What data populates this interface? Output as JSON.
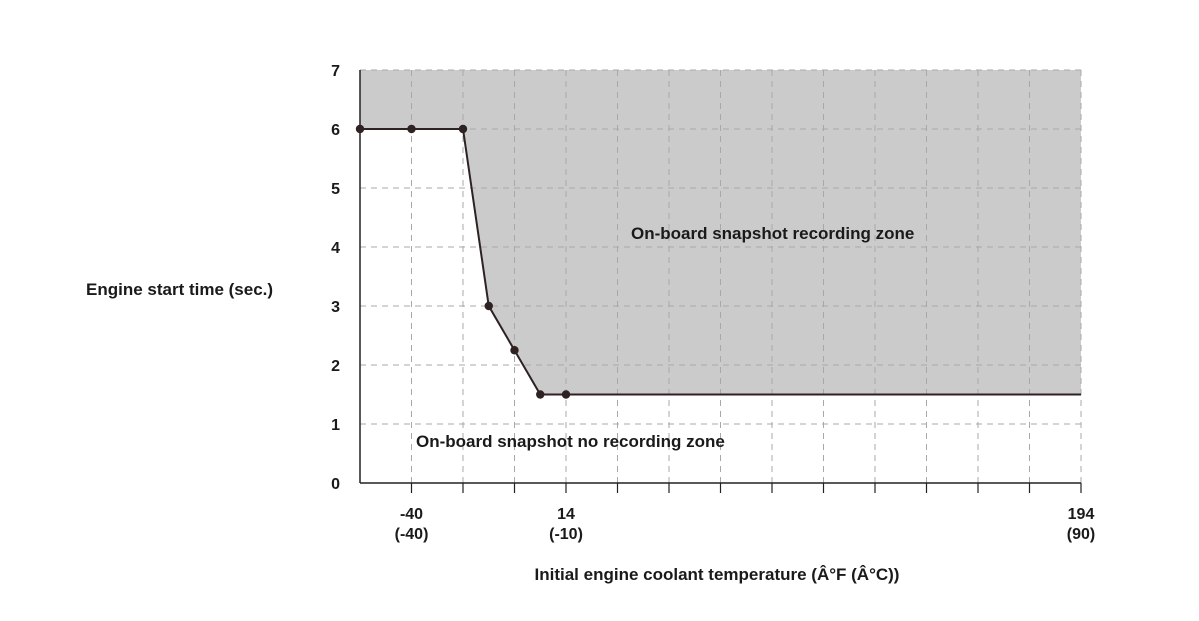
{
  "chart_data": {
    "type": "area",
    "ylabel": "Engine start time (sec.)",
    "xlabel": "Initial engine coolant temperature (Â°F (Â°C))",
    "y_ticks": [
      0,
      1,
      2,
      3,
      4,
      5,
      6,
      7
    ],
    "y_tick_labels": [
      "0",
      "1",
      "2",
      "3",
      "4",
      "5",
      "6",
      "7"
    ],
    "ylim": [
      0,
      7
    ],
    "xlim": [
      -58,
      194
    ],
    "x_ticks": [
      {
        "value": -40,
        "label_f": "-40",
        "label_c": "(-40)"
      },
      {
        "value": 14,
        "label_f": "14",
        "label_c": "(-10)"
      },
      {
        "value": 194,
        "label_f": "194",
        "label_c": "(90)"
      }
    ],
    "x_grid_step": 18,
    "grid": true,
    "threshold_line": {
      "x": [
        -58,
        -40,
        -22,
        -13,
        -4,
        5,
        14,
        194
      ],
      "y": [
        6,
        6,
        6,
        3,
        2.25,
        1.5,
        1.5,
        1.5
      ],
      "markers": [
        true,
        true,
        true,
        true,
        true,
        true,
        true,
        false
      ]
    },
    "zones": {
      "upper": "On-board snapshot recording zone",
      "lower": "On-board snapshot no recording zone"
    },
    "colors": {
      "recording_zone_fill": "#cbcbcb",
      "line": "#2e2222",
      "grid": "#a8a8a8",
      "axis": "#222222"
    }
  }
}
